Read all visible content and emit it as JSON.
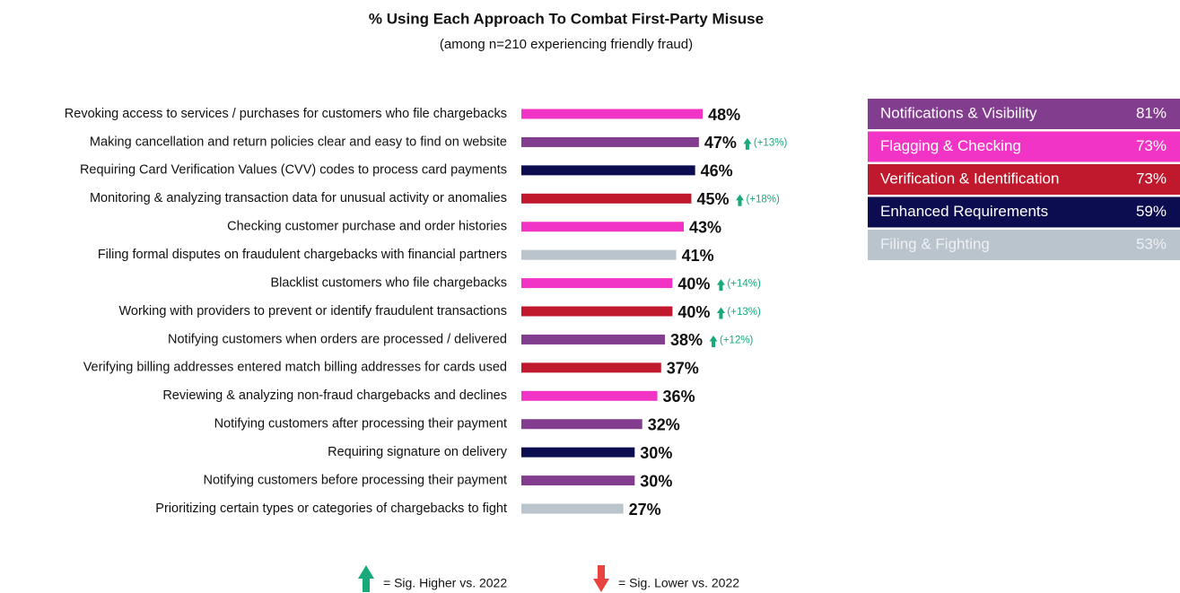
{
  "chart_data": {
    "type": "bar",
    "orientation": "horizontal",
    "title": "% Using Each Approach To Combat First-Party Misuse",
    "subtitle": "(among n=210 experiencing friendly fraud)",
    "categories": [
      "Revoking access to services / purchases for customers who file chargebacks",
      "Making cancellation and return policies clear and easy to find on website",
      "Requiring Card Verification Values (CVV) codes to process card payments",
      "Monitoring & analyzing transaction data for unusual activity or anomalies",
      "Checking customer purchase and order histories",
      "Filing formal disputes on fraudulent chargebacks with financial partners",
      "Blacklist customers who file chargebacks",
      "Working with providers to prevent or identify fraudulent transactions",
      "Notifying customers when orders are processed / delivered",
      "Verifying billing addresses entered match billing addresses for cards used",
      "Reviewing & analyzing non-fraud chargebacks and declines",
      "Notifying customers after processing their payment",
      "Requiring signature on delivery",
      "Notifying customers before processing their payment",
      "Prioritizing certain types or categories of chargebacks to fight"
    ],
    "values": [
      48,
      47,
      46,
      45,
      43,
      41,
      40,
      40,
      38,
      37,
      36,
      32,
      30,
      30,
      27
    ],
    "value_labels": [
      "48%",
      "47%",
      "46%",
      "45%",
      "43%",
      "41%",
      "40%",
      "40%",
      "38%",
      "37%",
      "36%",
      "32%",
      "30%",
      "30%",
      "27%"
    ],
    "colors": [
      "#f234c6",
      "#833d8e",
      "#0c0c50",
      "#c0182c",
      "#f234c6",
      "#bac4cc",
      "#f234c6",
      "#c0182c",
      "#833d8e",
      "#c0182c",
      "#f234c6",
      "#833d8e",
      "#0c0c50",
      "#833d8e",
      "#bac4cc"
    ],
    "changes": [
      null,
      13,
      null,
      18,
      null,
      null,
      14,
      13,
      12,
      null,
      null,
      null,
      null,
      null,
      null
    ],
    "change_labels": [
      null,
      "(+13%)",
      null,
      "(+18%)",
      null,
      null,
      "(+14%)",
      "(+13%)",
      "(+12%)",
      null,
      null,
      null,
      null,
      null,
      null
    ],
    "legend": [
      {
        "name": "Notifications & Visibility",
        "value": 81,
        "value_label": "81%",
        "color": "#833d8e"
      },
      {
        "name": "Flagging & Checking",
        "value": 73,
        "value_label": "73%",
        "color": "#f234c6"
      },
      {
        "name": "Verification & Identification",
        "value": 73,
        "value_label": "73%",
        "color": "#c0182c"
      },
      {
        "name": "Enhanced Requirements",
        "value": 59,
        "value_label": "59%",
        "color": "#0c0c50"
      },
      {
        "name": "Filing & Fighting",
        "value": 53,
        "value_label": "53%",
        "color": "#bac4cc"
      }
    ],
    "key": [
      {
        "label": "= Sig. Higher vs. 2022",
        "color": "#19a97a",
        "direction": "up"
      },
      {
        "label": "= Sig. Lower vs. 2022",
        "color": "#e8443f",
        "direction": "down"
      }
    ]
  }
}
